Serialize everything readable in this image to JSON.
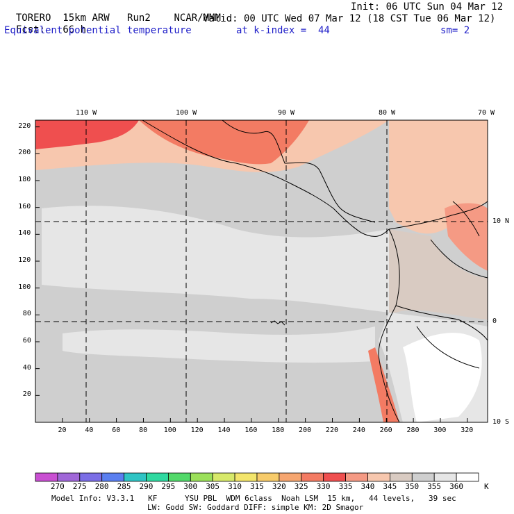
{
  "header": {
    "model": "TORERO",
    "resolution": "15km ARW",
    "run": "Run2",
    "org": "NCAR/MMM",
    "init": "Init: 06 UTC Sun 04 Mar 12",
    "fcst_label": "Fcst:",
    "fcst_value": "66 h",
    "valid": "Valid: 00 UTC Wed 07 Mar 12 (18 CST Tue 06 Mar 12)",
    "field": "Equivalent potential temperature",
    "level": "at k-index =  44",
    "smoothing": "sm= 2"
  },
  "map": {
    "lon_labels": [
      "110 W",
      "100 W",
      "90 W",
      "80 W",
      "70 W"
    ],
    "lat_labels": [
      "10 N",
      "0",
      "10 S"
    ],
    "x_ticks": [
      "20",
      "40",
      "60",
      "80",
      "100",
      "120",
      "140",
      "160",
      "180",
      "200",
      "220",
      "240",
      "260",
      "280",
      "300",
      "320"
    ],
    "y_ticks": [
      "220",
      "200",
      "180",
      "160",
      "140",
      "120",
      "100",
      "80",
      "60",
      "40",
      "20"
    ],
    "xlim": [
      0,
      335
    ],
    "ylim": [
      0,
      225
    ]
  },
  "colorbar": {
    "unit": "K",
    "levels": [
      "270",
      "275",
      "280",
      "285",
      "290",
      "295",
      "300",
      "305",
      "310",
      "315",
      "320",
      "325",
      "330",
      "335",
      "340",
      "345",
      "350",
      "355",
      "360"
    ],
    "colors": [
      "#c94fd2",
      "#a067d8",
      "#7b6ee6",
      "#5a7ff0",
      "#2fc4c4",
      "#2fd9a0",
      "#52d96a",
      "#9be05a",
      "#d7e96a",
      "#f3e56b",
      "#f7cb6a",
      "#f6a670",
      "#f37b63",
      "#ef4f4f",
      "#f59a84",
      "#f7c7ae",
      "#d9cbc2",
      "#cfcfcf",
      "#e6e6e6",
      "#ffffff"
    ]
  },
  "footer": {
    "line1": "Model Info: V3.3.1   KF      YSU PBL  WDM 6class  Noah LSM  15 km,   44 levels,   39 sec",
    "line2": "LW: Godd SW: Goddard DIFF: simple KM: 2D Smagor"
  }
}
